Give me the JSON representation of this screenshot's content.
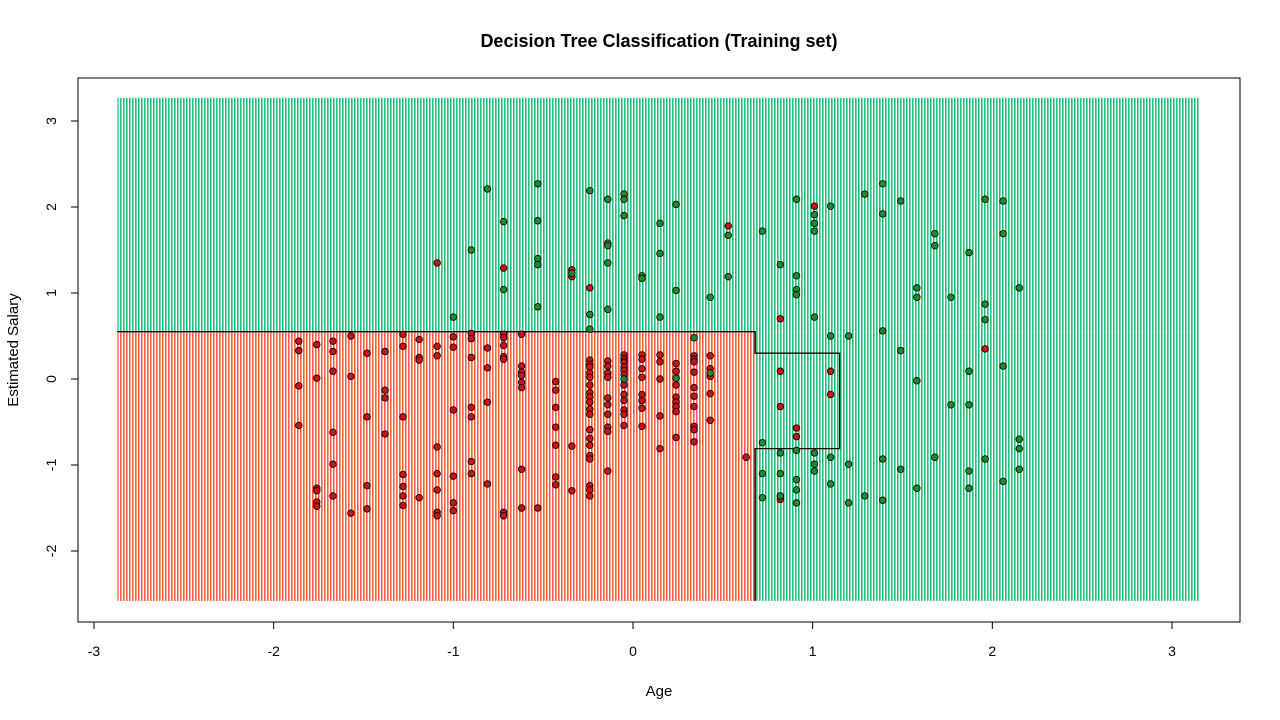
{
  "chart_data": {
    "type": "scatter",
    "title": "Decision Tree Classification (Training set)",
    "xlabel": "Age",
    "ylabel": "Estimated Salary",
    "xlim": [
      -3,
      3.15
    ],
    "ylim": [
      -2.6,
      3.3
    ],
    "x_ticks": [
      -3,
      -2,
      -1,
      0,
      1,
      2,
      3
    ],
    "y_ticks": [
      -2,
      -1,
      0,
      1,
      2,
      3
    ],
    "grid": false,
    "colors": {
      "region_class0": "#f4603f",
      "region_class1": "#22c07a",
      "point_class0": "#cc1111",
      "point_class1": "#1e8a2e",
      "point_edge": "#000000"
    },
    "decision_regions": [
      {
        "label": 0,
        "x": [
          -2.87,
          0.68
        ],
        "y": [
          -2.58,
          0.55
        ]
      },
      {
        "label": 0,
        "x": [
          0.68,
          1.15
        ],
        "y": [
          -0.81,
          0.3
        ]
      },
      {
        "label": 1,
        "x": [
          -2.87,
          3.15
        ],
        "y": [
          0.55,
          3.27
        ]
      },
      {
        "label": 1,
        "x": [
          0.68,
          3.15
        ],
        "y": [
          -2.58,
          0.55
        ]
      }
    ],
    "decision_boundary": [
      [
        -2.87,
        0.55
      ],
      [
        0.68,
        0.55
      ],
      [
        0.68,
        0.3
      ],
      [
        1.15,
        0.3
      ],
      [
        1.15,
        -0.81
      ],
      [
        0.68,
        -0.81
      ],
      [
        0.68,
        -2.58
      ]
    ],
    "series": [
      {
        "label": 0,
        "points": [
          [
            -1.86,
            0.44
          ],
          [
            -1.86,
            0.33
          ],
          [
            -1.86,
            -0.08
          ],
          [
            -1.86,
            -0.54
          ],
          [
            -1.76,
            0.4
          ],
          [
            -1.76,
            0.01
          ],
          [
            -1.76,
            -1.27
          ],
          [
            -1.76,
            -1.3
          ],
          [
            -1.76,
            -1.43
          ],
          [
            -1.76,
            -1.48
          ],
          [
            -1.67,
            0.44
          ],
          [
            -1.67,
            0.32
          ],
          [
            -1.67,
            0.09
          ],
          [
            -1.67,
            -0.62
          ],
          [
            -1.67,
            -0.99
          ],
          [
            -1.67,
            -1.36
          ],
          [
            -1.57,
            0.5
          ],
          [
            -1.57,
            0.03
          ],
          [
            -1.57,
            -1.56
          ],
          [
            -1.48,
            0.3
          ],
          [
            -1.48,
            -0.44
          ],
          [
            -1.48,
            -1.24
          ],
          [
            -1.48,
            -1.51
          ],
          [
            -1.38,
            0.32
          ],
          [
            -1.38,
            -0.13
          ],
          [
            -1.38,
            -0.22
          ],
          [
            -1.38,
            -0.64
          ],
          [
            -1.28,
            0.52
          ],
          [
            -1.28,
            0.38
          ],
          [
            -1.28,
            -0.44
          ],
          [
            -1.28,
            -1.11
          ],
          [
            -1.28,
            -1.25
          ],
          [
            -1.28,
            -1.36
          ],
          [
            -1.28,
            -1.47
          ],
          [
            -1.19,
            0.46
          ],
          [
            -1.19,
            0.25
          ],
          [
            -1.19,
            0.22
          ],
          [
            -1.19,
            -1.38
          ],
          [
            -1.09,
            1.35
          ],
          [
            -1.09,
            0.38
          ],
          [
            -1.09,
            0.27
          ],
          [
            -1.09,
            -0.79
          ],
          [
            -1.09,
            -1.1
          ],
          [
            -1.09,
            -1.29
          ],
          [
            -1.09,
            -1.55
          ],
          [
            -1.09,
            -1.59
          ],
          [
            -1.0,
            0.49
          ],
          [
            -1.0,
            0.37
          ],
          [
            -1.0,
            -0.36
          ],
          [
            -1.0,
            -1.13
          ],
          [
            -1.0,
            -1.44
          ],
          [
            -1.0,
            -1.53
          ],
          [
            -0.9,
            0.53
          ],
          [
            -0.9,
            0.47
          ],
          [
            -0.9,
            0.25
          ],
          [
            -0.9,
            -0.33
          ],
          [
            -0.9,
            -0.44
          ],
          [
            -0.9,
            -0.96
          ],
          [
            -0.9,
            -1.1
          ],
          [
            -0.81,
            0.36
          ],
          [
            -0.81,
            0.13
          ],
          [
            -0.81,
            -0.27
          ],
          [
            -0.81,
            -1.22
          ],
          [
            -0.72,
            1.29
          ],
          [
            -0.72,
            0.52
          ],
          [
            -0.72,
            0.48
          ],
          [
            -0.72,
            0.39
          ],
          [
            -0.72,
            0.26
          ],
          [
            -0.72,
            0.23
          ],
          [
            -0.72,
            -1.55
          ],
          [
            -0.72,
            -1.59
          ],
          [
            -0.62,
            0.52
          ],
          [
            -0.62,
            0.15
          ],
          [
            -0.62,
            0.08
          ],
          [
            -0.62,
            0.04
          ],
          [
            -0.62,
            -0.04
          ],
          [
            -0.62,
            -0.1
          ],
          [
            -0.62,
            -1.05
          ],
          [
            -0.62,
            -1.5
          ],
          [
            -0.53,
            -1.5
          ],
          [
            -0.43,
            -0.03
          ],
          [
            -0.43,
            -0.13
          ],
          [
            -0.43,
            -0.33
          ],
          [
            -0.43,
            -0.56
          ],
          [
            -0.43,
            -0.77
          ],
          [
            -0.43,
            -1.14
          ],
          [
            -0.43,
            -1.23
          ],
          [
            -0.34,
            1.27
          ],
          [
            -0.34,
            1.19
          ],
          [
            -0.34,
            -0.78
          ],
          [
            -0.34,
            -1.3
          ],
          [
            -0.24,
            1.06
          ],
          [
            -0.24,
            0.22
          ],
          [
            -0.24,
            0.17
          ],
          [
            -0.24,
            0.14
          ],
          [
            -0.24,
            0.07
          ],
          [
            -0.24,
            0.02
          ],
          [
            -0.24,
            -0.07
          ],
          [
            -0.24,
            -0.16
          ],
          [
            -0.24,
            -0.21
          ],
          [
            -0.24,
            -0.27
          ],
          [
            -0.24,
            -0.35
          ],
          [
            -0.24,
            -0.41
          ],
          [
            -0.24,
            -0.59
          ],
          [
            -0.24,
            -0.69
          ],
          [
            -0.24,
            -0.77
          ],
          [
            -0.24,
            -0.89
          ],
          [
            -0.24,
            -0.93
          ],
          [
            -0.24,
            -1.24
          ],
          [
            -0.24,
            -1.29
          ],
          [
            -0.24,
            -1.36
          ],
          [
            -0.14,
            0.21
          ],
          [
            -0.14,
            0.15
          ],
          [
            -0.14,
            0.07
          ],
          [
            -0.14,
            0.02
          ],
          [
            -0.14,
            -0.22
          ],
          [
            -0.14,
            -0.3
          ],
          [
            -0.14,
            -0.41
          ],
          [
            -0.14,
            -0.56
          ],
          [
            -0.14,
            -0.61
          ],
          [
            -0.14,
            -1.07
          ],
          [
            -0.05,
            0.28
          ],
          [
            -0.05,
            0.24
          ],
          [
            -0.05,
            0.21
          ],
          [
            -0.05,
            0.19
          ],
          [
            -0.05,
            0.14
          ],
          [
            -0.05,
            0.1
          ],
          [
            -0.05,
            0.05
          ],
          [
            -0.05,
            -0.07
          ],
          [
            -0.05,
            -0.18
          ],
          [
            -0.05,
            -0.25
          ],
          [
            -0.05,
            -0.36
          ],
          [
            -0.05,
            -0.41
          ],
          [
            -0.05,
            -0.54
          ],
          [
            0.05,
            0.28
          ],
          [
            0.05,
            0.23
          ],
          [
            0.05,
            0.12
          ],
          [
            0.05,
            0.02
          ],
          [
            0.05,
            -0.18
          ],
          [
            0.05,
            -0.25
          ],
          [
            0.05,
            -0.34
          ],
          [
            0.05,
            -0.55
          ],
          [
            0.15,
            0.28
          ],
          [
            0.15,
            0.2
          ],
          [
            0.15,
            0.0
          ],
          [
            0.15,
            -0.43
          ],
          [
            0.15,
            -0.81
          ],
          [
            0.24,
            0.18
          ],
          [
            0.24,
            0.09
          ],
          [
            0.24,
            -0.07
          ],
          [
            0.24,
            -0.21
          ],
          [
            0.24,
            -0.27
          ],
          [
            0.24,
            -0.32
          ],
          [
            0.24,
            -0.38
          ],
          [
            0.24,
            -0.68
          ],
          [
            0.34,
            0.27
          ],
          [
            0.34,
            0.23
          ],
          [
            0.34,
            0.2
          ],
          [
            0.34,
            0.08
          ],
          [
            0.34,
            -0.1
          ],
          [
            0.34,
            -0.2
          ],
          [
            0.34,
            -0.32
          ],
          [
            0.34,
            -0.55
          ],
          [
            0.34,
            -0.59
          ],
          [
            0.34,
            -0.73
          ],
          [
            0.43,
            0.27
          ],
          [
            0.43,
            0.12
          ],
          [
            0.43,
            0.03
          ],
          [
            0.43,
            -0.17
          ],
          [
            0.43,
            -0.48
          ],
          [
            0.53,
            1.78
          ],
          [
            0.63,
            -0.91
          ],
          [
            0.82,
            0.7
          ],
          [
            0.82,
            0.09
          ],
          [
            0.82,
            -0.32
          ],
          [
            0.82,
            -1.36
          ],
          [
            0.82,
            -1.4
          ],
          [
            0.91,
            -0.57
          ],
          [
            0.91,
            -0.67
          ],
          [
            1.01,
            2.01
          ],
          [
            1.1,
            0.09
          ],
          [
            1.1,
            -0.18
          ],
          [
            1.96,
            0.35
          ]
        ]
      },
      {
        "label": 1,
        "points": [
          [
            -1.0,
            0.72
          ],
          [
            -0.9,
            1.5
          ],
          [
            -0.81,
            2.21
          ],
          [
            -0.72,
            1.83
          ],
          [
            -0.72,
            1.04
          ],
          [
            -0.53,
            2.27
          ],
          [
            -0.53,
            1.84
          ],
          [
            -0.53,
            1.4
          ],
          [
            -0.53,
            1.33
          ],
          [
            -0.53,
            0.84
          ],
          [
            -0.34,
            1.23
          ],
          [
            -0.24,
            2.19
          ],
          [
            -0.24,
            0.75
          ],
          [
            -0.24,
            0.58
          ],
          [
            -0.14,
            2.09
          ],
          [
            -0.14,
            1.58
          ],
          [
            -0.14,
            1.55
          ],
          [
            -0.14,
            1.35
          ],
          [
            -0.14,
            0.81
          ],
          [
            -0.05,
            2.15
          ],
          [
            -0.05,
            2.09
          ],
          [
            -0.05,
            1.9
          ],
          [
            -0.05,
            0.0
          ],
          [
            0.05,
            1.2
          ],
          [
            0.05,
            1.17
          ],
          [
            0.15,
            1.81
          ],
          [
            0.15,
            1.46
          ],
          [
            0.15,
            0.72
          ],
          [
            0.24,
            2.03
          ],
          [
            0.24,
            1.03
          ],
          [
            0.24,
            0.01
          ],
          [
            0.34,
            0.48
          ],
          [
            0.43,
            0.95
          ],
          [
            0.43,
            0.07
          ],
          [
            0.53,
            1.67
          ],
          [
            0.53,
            1.19
          ],
          [
            0.72,
            1.72
          ],
          [
            0.72,
            -0.74
          ],
          [
            0.72,
            -1.1
          ],
          [
            0.72,
            -1.38
          ],
          [
            0.82,
            1.33
          ],
          [
            0.82,
            -0.86
          ],
          [
            0.82,
            -1.1
          ],
          [
            0.82,
            -1.36
          ],
          [
            0.91,
            2.09
          ],
          [
            0.91,
            1.2
          ],
          [
            0.91,
            1.04
          ],
          [
            0.91,
            0.98
          ],
          [
            0.91,
            -0.83
          ],
          [
            0.91,
            -1.17
          ],
          [
            0.91,
            -1.29
          ],
          [
            0.91,
            -1.44
          ],
          [
            1.01,
            1.91
          ],
          [
            1.01,
            1.81
          ],
          [
            1.01,
            1.72
          ],
          [
            1.01,
            0.72
          ],
          [
            1.01,
            -0.86
          ],
          [
            1.01,
            -0.99
          ],
          [
            1.01,
            -1.07
          ],
          [
            1.1,
            2.01
          ],
          [
            1.1,
            0.5
          ],
          [
            1.1,
            -0.91
          ],
          [
            1.1,
            -1.22
          ],
          [
            1.2,
            0.5
          ],
          [
            1.2,
            -0.99
          ],
          [
            1.2,
            -1.44
          ],
          [
            1.29,
            2.15
          ],
          [
            1.29,
            -1.36
          ],
          [
            1.39,
            2.27
          ],
          [
            1.39,
            1.92
          ],
          [
            1.39,
            0.56
          ],
          [
            1.39,
            -0.93
          ],
          [
            1.39,
            -1.41
          ],
          [
            1.49,
            2.07
          ],
          [
            1.49,
            0.33
          ],
          [
            1.49,
            -1.05
          ],
          [
            1.58,
            1.06
          ],
          [
            1.58,
            0.95
          ],
          [
            1.58,
            -0.02
          ],
          [
            1.58,
            -1.27
          ],
          [
            1.68,
            1.69
          ],
          [
            1.68,
            1.55
          ],
          [
            1.68,
            -0.91
          ],
          [
            1.77,
            0.95
          ],
          [
            1.77,
            -0.3
          ],
          [
            1.87,
            1.47
          ],
          [
            1.87,
            0.09
          ],
          [
            1.87,
            -0.3
          ],
          [
            1.87,
            -1.07
          ],
          [
            1.87,
            -1.27
          ],
          [
            1.96,
            2.09
          ],
          [
            1.96,
            0.87
          ],
          [
            1.96,
            0.69
          ],
          [
            1.96,
            -0.93
          ],
          [
            2.06,
            2.07
          ],
          [
            2.06,
            1.69
          ],
          [
            2.06,
            0.15
          ],
          [
            2.06,
            -1.19
          ],
          [
            2.15,
            1.06
          ],
          [
            2.15,
            -0.7
          ],
          [
            2.15,
            -0.81
          ],
          [
            2.15,
            -1.05
          ]
        ]
      }
    ]
  }
}
